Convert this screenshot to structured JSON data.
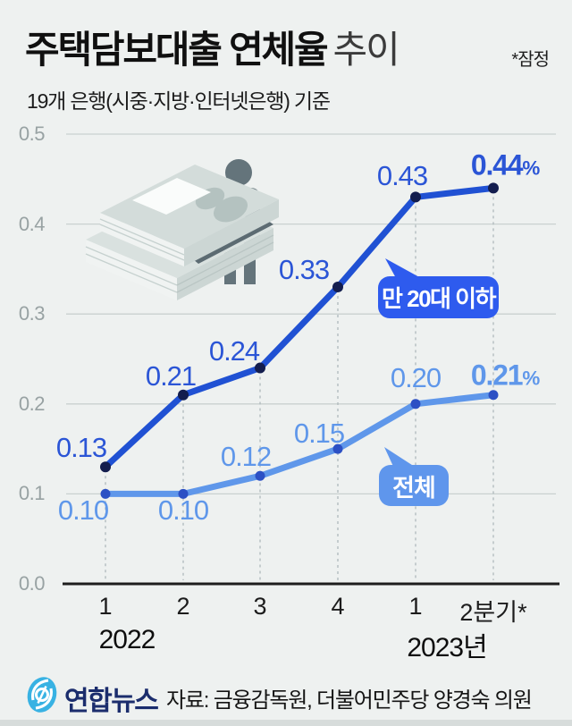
{
  "header": {
    "title_bold": "주택담보대출 연체율",
    "title_light": "추이",
    "note": "*잠정",
    "subtitle": "19개 은행(시중·지방·인터넷은행) 기준"
  },
  "chart_data": {
    "type": "line",
    "title": "주택담보대출 연체율 추이",
    "subtitle": "19개 은행(시중·지방·인터넷은행) 기준",
    "unit": "%",
    "grid": true,
    "legend_position": "inline-callouts",
    "ylim": [
      0.0,
      0.5
    ],
    "y_ticks": [
      {
        "label": "0.5",
        "value": 0.5
      },
      {
        "label": "0.4",
        "value": 0.4
      },
      {
        "label": "0.3",
        "value": 0.3
      },
      {
        "label": "0.2",
        "value": 0.2
      },
      {
        "label": "0.1",
        "value": 0.1
      },
      {
        "label": "0.0",
        "value": 0.0
      }
    ],
    "x_tick_labels": [
      "1",
      "2",
      "3",
      "4",
      "1",
      "2분기*"
    ],
    "x_year_labels": [
      {
        "text": "2022"
      },
      {
        "text": "2023년"
      }
    ],
    "series": [
      {
        "key": "under20",
        "name": "만 20대 이하",
        "values": [
          0.13,
          0.21,
          0.24,
          0.33,
          0.43,
          0.44
        ],
        "labels": [
          "0.13",
          "0.21",
          "0.24",
          "0.33",
          "0.43",
          "0.44%"
        ],
        "color": "#2051d3",
        "point_color": "#131d4e",
        "label_color": "#2b55d6"
      },
      {
        "key": "total",
        "name": "전체",
        "values": [
          0.1,
          0.1,
          0.12,
          0.15,
          0.2,
          0.21
        ],
        "labels": [
          "0.10",
          "0.10",
          "0.12",
          "0.15",
          "0.20",
          "0.21%"
        ],
        "color": "#5f97ea",
        "point_color": "#2c50c4",
        "label_color": "#5f97ea"
      }
    ],
    "callouts": [
      {
        "text": "만 20대 이하",
        "bg": "#2e5bee"
      },
      {
        "text": "전체",
        "bg": "#5f96ec"
      }
    ],
    "colors": {
      "background": "#eef1f0",
      "grid": "#c9d1d0",
      "axis": "#1d1d1d",
      "dashed_guide": "#b3bdbf"
    }
  },
  "footer": {
    "logo_text": "연합뉴스",
    "source": "자료: 금융감독원, 더불어민주당 양경숙 의원"
  }
}
